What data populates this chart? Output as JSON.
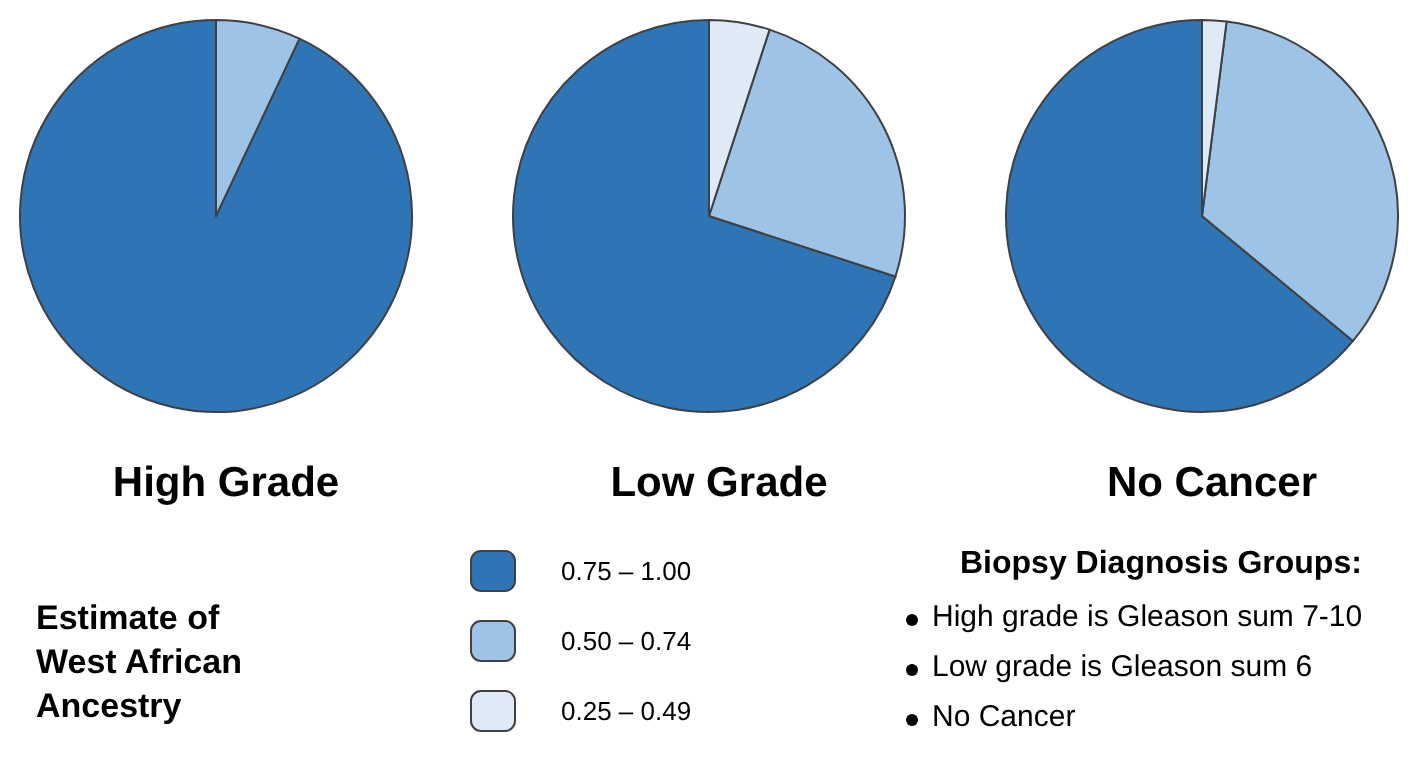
{
  "chart_data": {
    "type": "pie",
    "categories": [
      "0.75 – 1.00",
      "0.50 – 0.74",
      "0.25 – 0.49"
    ],
    "colors": [
      "#2e75b6",
      "#9dc3e6",
      "#deebf7"
    ],
    "series": [
      {
        "name": "High Grade",
        "values": [
          93,
          7,
          0
        ]
      },
      {
        "name": "Low Grade",
        "values": [
          70,
          25,
          5
        ]
      },
      {
        "name": "No Cancer",
        "values": [
          64,
          34,
          2
        ]
      }
    ],
    "legend": "bottom left",
    "legend_title": "Estimate of West African Ancestry",
    "annotations": [
      "Biopsy Diagnosis Groups:",
      "High grade is Gleason sum 7-10",
      "Low grade is Gleason sum 6",
      "No Cancer"
    ]
  }
}
